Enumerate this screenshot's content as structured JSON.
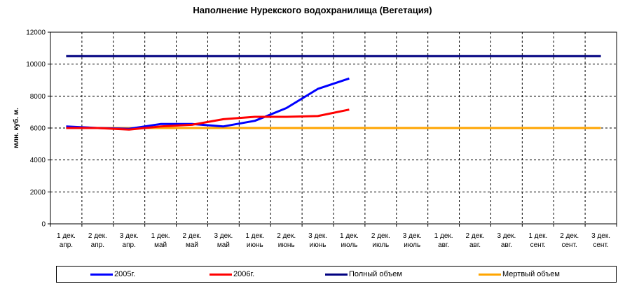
{
  "chart_data": {
    "type": "line",
    "title": "Наполнение Нурекского водохранилища (Вегетация)",
    "xlabel": "",
    "ylabel": "млн. куб. м.",
    "ylim": [
      0,
      12000
    ],
    "yticks": [
      0,
      2000,
      4000,
      6000,
      8000,
      10000,
      12000
    ],
    "grid": true,
    "legend_position": "bottom",
    "categories": [
      [
        "1 дек.",
        "апр."
      ],
      [
        "2 дек.",
        "апр."
      ],
      [
        "3 дек.",
        "апр."
      ],
      [
        "1 дек.",
        "май"
      ],
      [
        "2 дек.",
        "май"
      ],
      [
        "3 дек.",
        "май"
      ],
      [
        "1 дек.",
        "июнь"
      ],
      [
        "2 дек.",
        "июнь"
      ],
      [
        "3 дек.",
        "июнь"
      ],
      [
        "1 дек.",
        "июль"
      ],
      [
        "2 дек.",
        "июль"
      ],
      [
        "3 дек.",
        "июль"
      ],
      [
        "1 дек.",
        "авг."
      ],
      [
        "2 дек.",
        "авг."
      ],
      [
        "3 дек.",
        "авг."
      ],
      [
        "1 дек.",
        "сент."
      ],
      [
        "2 дек.",
        "сент."
      ],
      [
        "3 дек.",
        "сент."
      ]
    ],
    "series": [
      {
        "name": "2005г.",
        "color": "#0000ff",
        "values": [
          6100,
          6000,
          5950,
          6250,
          6250,
          6100,
          6450,
          7250,
          8450,
          9100,
          null,
          null,
          null,
          null,
          null,
          null,
          null,
          null
        ]
      },
      {
        "name": "2006г.",
        "color": "#ff0000",
        "values": [
          6000,
          6000,
          5900,
          6100,
          6200,
          6550,
          6700,
          6700,
          6750,
          7150,
          null,
          null,
          null,
          null,
          null,
          null,
          null,
          null
        ]
      },
      {
        "name": "Полный объем",
        "color": "#000080",
        "values": [
          10500,
          10500,
          10500,
          10500,
          10500,
          10500,
          10500,
          10500,
          10500,
          10500,
          10500,
          10500,
          10500,
          10500,
          10500,
          10500,
          10500,
          10500
        ]
      },
      {
        "name": "Мертвый объем",
        "color": "#ffa500",
        "values": [
          6000,
          6000,
          6000,
          6000,
          6000,
          6000,
          6000,
          6000,
          6000,
          6000,
          6000,
          6000,
          6000,
          6000,
          6000,
          6000,
          6000,
          6000
        ]
      }
    ]
  }
}
